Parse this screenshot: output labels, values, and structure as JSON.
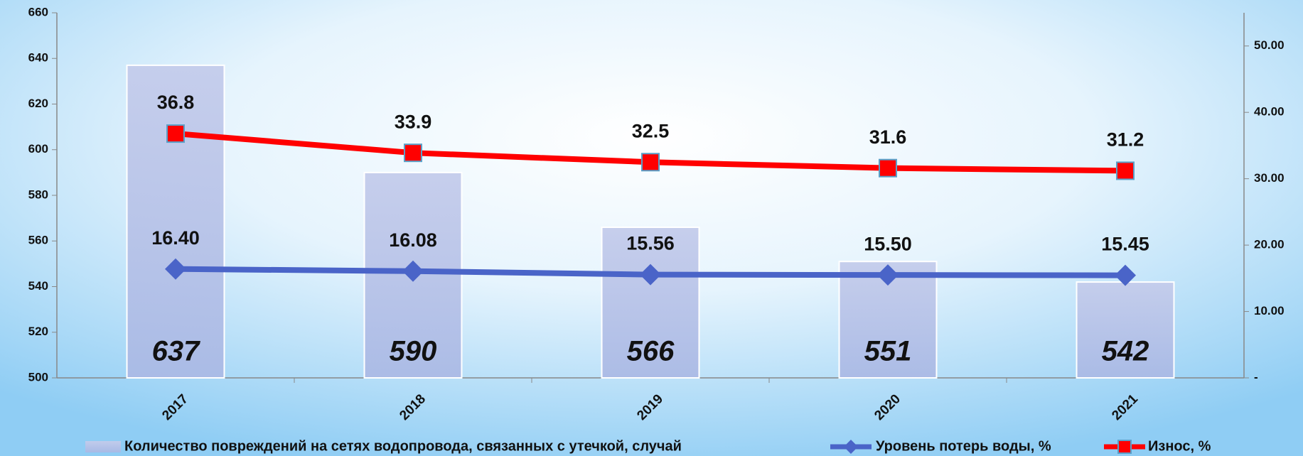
{
  "chart_data": {
    "type": "bar",
    "categories": [
      "2017",
      "2018",
      "2019",
      "2020",
      "2021"
    ],
    "ylim": [
      500,
      660
    ],
    "yticks": [
      500,
      520,
      540,
      560,
      580,
      600,
      620,
      640,
      660
    ],
    "y2lim": [
      0,
      55
    ],
    "y2ticks": [
      {
        "value": 0,
        "label": "-"
      },
      {
        "value": 10,
        "label": "10.00"
      },
      {
        "value": 20,
        "label": "20.00"
      },
      {
        "value": 30,
        "label": "30.00"
      },
      {
        "value": 40,
        "label": "40.00"
      },
      {
        "value": 50,
        "label": "50.00"
      }
    ],
    "legend": "bottom",
    "series": [
      {
        "name": "Количество повреждений на сетях водопровода, связанных с утечкой, случай",
        "type": "bar",
        "color": "#b4c0e8",
        "values": [
          637,
          590,
          566,
          551,
          542
        ]
      },
      {
        "name": "Уровень потерь воды, %",
        "type": "line",
        "axis": "y2",
        "color": "#4a64c8",
        "values": [
          16.4,
          16.08,
          15.56,
          15.5,
          15.45
        ],
        "value_labels": [
          "16.40",
          "16.08",
          "15.56",
          "15.50",
          "15.45"
        ]
      },
      {
        "name": "Износ, %",
        "type": "line",
        "axis": "y2",
        "color": "#ff0000",
        "values": [
          36.8,
          33.9,
          32.5,
          31.6,
          31.2
        ]
      }
    ]
  }
}
